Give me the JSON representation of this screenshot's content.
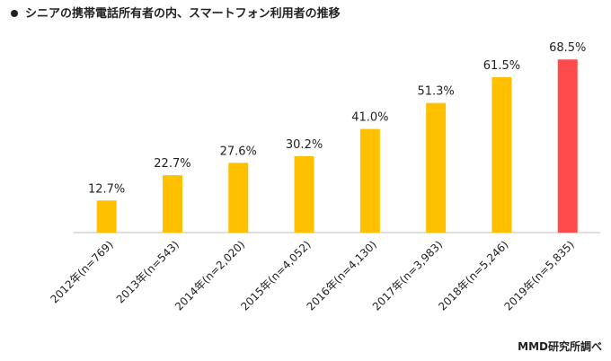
{
  "chart_data": {
    "type": "bar",
    "title": "シニアの携帯電話所有者の内、スマートフォン利用者の推移",
    "categories": [
      "2012年(n=769)",
      "2013年(n=543)",
      "2014年(n=2,020)",
      "2015年(n=4,052)",
      "2016年(n=4,130)",
      "2017年(n=3,983)",
      "2018年(n=5,246)",
      "2019年(n=5,835)"
    ],
    "values": [
      12.7,
      22.7,
      27.6,
      30.2,
      41.0,
      51.3,
      61.5,
      68.5
    ],
    "value_labels": [
      "12.7%",
      "22.7%",
      "27.6%",
      "30.2%",
      "41.0%",
      "51.3%",
      "61.5%",
      "68.5%"
    ],
    "ylim": [
      0,
      70
    ],
    "grid": false,
    "colors": {
      "default": "#FFC000",
      "highlight": "#FF4B4B",
      "axis": "#bfbfbf",
      "text": "#222222"
    },
    "highlight_index": 7
  },
  "source": "MMD研究所調べ"
}
